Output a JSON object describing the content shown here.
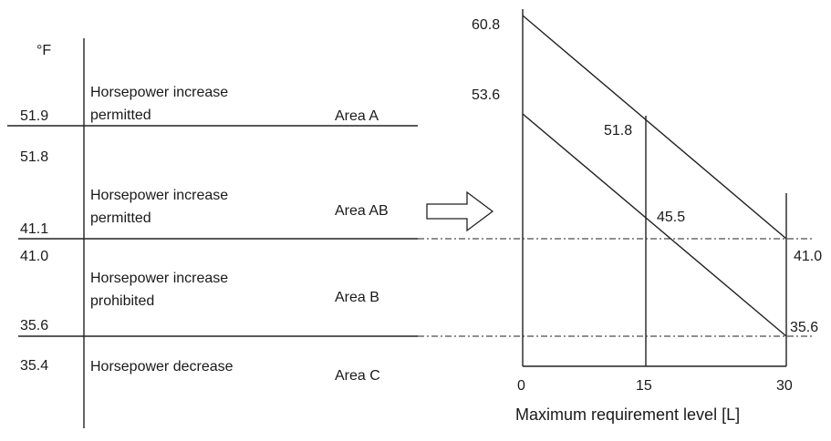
{
  "left_panel": {
    "unit": "°F",
    "zones": [
      {
        "id": "a",
        "top_value": "",
        "bottom_value": "51.9",
        "desc_line1": "Horsepower increase",
        "desc_line2": "permitted",
        "area": "Area A"
      },
      {
        "id": "ab",
        "top_value": "51.8",
        "bottom_value": "41.1",
        "desc_line1": "Horsepower increase",
        "desc_line2": "permitted",
        "area": "Area AB"
      },
      {
        "id": "b",
        "top_value": "41.0",
        "bottom_value": "35.6",
        "desc_line1": "Horsepower increase",
        "desc_line2": "prohibited",
        "area": "Area B"
      },
      {
        "id": "c",
        "top_value": "35.4",
        "bottom_value": "",
        "desc_line1": "Horsepower decrease",
        "desc_line2": "",
        "area": "Area C"
      }
    ]
  },
  "right_chart": {
    "xlabel": "Maximum requirement level [L]",
    "x_ticks": [
      "0",
      "15",
      "30"
    ],
    "upper_line": {
      "start": "60.8",
      "mid": "51.8",
      "end": "41.0"
    },
    "lower_line": {
      "start": "53.6",
      "mid": "45.5",
      "end": "35.6"
    }
  },
  "chart_data": {
    "type": "line",
    "xlabel": "Maximum requirement level [L]",
    "ylabel": "",
    "x": [
      0,
      15,
      30
    ],
    "series": [
      {
        "values": [
          60.8,
          51.8,
          41.0
        ]
      },
      {
        "values": [
          53.6,
          45.5,
          35.6
        ]
      }
    ],
    "reference_lines": [
      41.0,
      35.6
    ],
    "xlim": [
      0,
      30
    ]
  }
}
